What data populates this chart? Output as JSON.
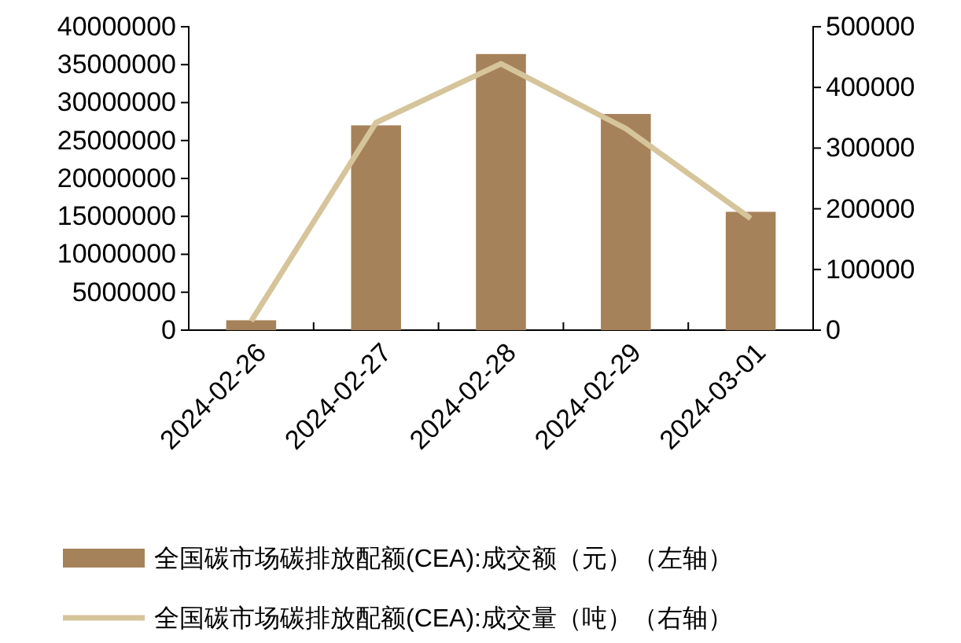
{
  "chart_data": {
    "type": "bar",
    "categories": [
      "2024-02-26",
      "2024-02-27",
      "2024-02-28",
      "2024-02-29",
      "2024-03-01"
    ],
    "series": [
      {
        "name": "全国碳市场碳排放配额(CEA):成交额（元）（左轴）",
        "color": "#a6825a",
        "values": [
          1300000,
          27000000,
          36400000,
          28500000,
          15600000
        ]
      },
      {
        "name": "全国碳市场碳排放配额(CEA):成交量（吨）（右轴）",
        "type": "line",
        "axis": "y2",
        "color": "#d6c49a",
        "values": [
          15000,
          342000,
          439000,
          332000,
          184000
        ]
      }
    ],
    "ylim": [
      0,
      40000000
    ],
    "yticks": [
      0,
      5000000,
      10000000,
      15000000,
      20000000,
      25000000,
      30000000,
      35000000,
      40000000
    ],
    "y2lim": [
      0,
      500000
    ],
    "y2ticks": [
      0,
      100000,
      200000,
      300000,
      400000,
      500000
    ],
    "grid": false,
    "legend": "bottom",
    "marker": "none",
    "line_style": "solid"
  }
}
